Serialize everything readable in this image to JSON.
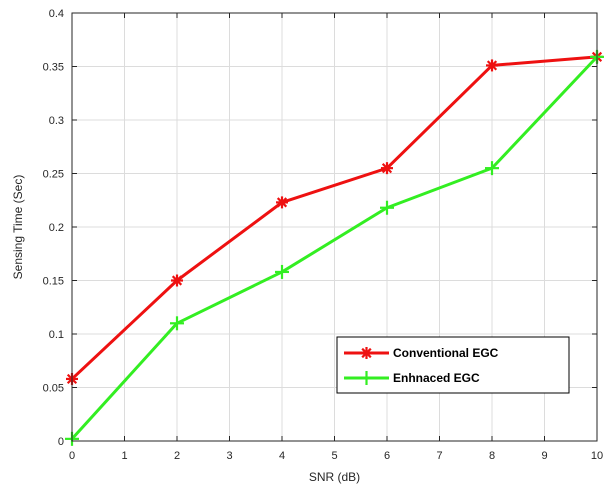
{
  "chart_data": {
    "type": "line",
    "title": "",
    "xlabel": "SNR (dB)",
    "ylabel": "Sensing Time (Sec)",
    "xlim": [
      0,
      10
    ],
    "ylim": [
      0,
      0.4
    ],
    "xticks": [
      0,
      1,
      2,
      3,
      4,
      5,
      6,
      7,
      8,
      9,
      10
    ],
    "xtick_labels": [
      "0",
      "1",
      "2",
      "3",
      "4",
      "5",
      "6",
      "7",
      "8",
      "9",
      "10"
    ],
    "yticks": [
      0,
      0.05,
      0.1,
      0.15,
      0.2,
      0.25,
      0.3,
      0.35,
      0.4
    ],
    "ytick_labels": [
      "0",
      "0.05",
      "0.1",
      "0.15",
      "0.2",
      "0.25",
      "0.3",
      "0.35",
      "0.4"
    ],
    "grid": true,
    "legend_position": "lower-right",
    "series": [
      {
        "name": "Conventional EGC",
        "color": "#ee1111",
        "marker": "asterisk",
        "x": [
          0,
          2,
          4,
          6,
          8,
          10
        ],
        "y": [
          0.058,
          0.15,
          0.223,
          0.255,
          0.351,
          0.359
        ]
      },
      {
        "name": "Enhnaced EGC",
        "color": "#33ee22",
        "marker": "plus",
        "x": [
          0,
          2,
          4,
          6,
          8,
          10
        ],
        "y": [
          0.002,
          0.11,
          0.158,
          0.218,
          0.255,
          0.359
        ]
      }
    ]
  }
}
